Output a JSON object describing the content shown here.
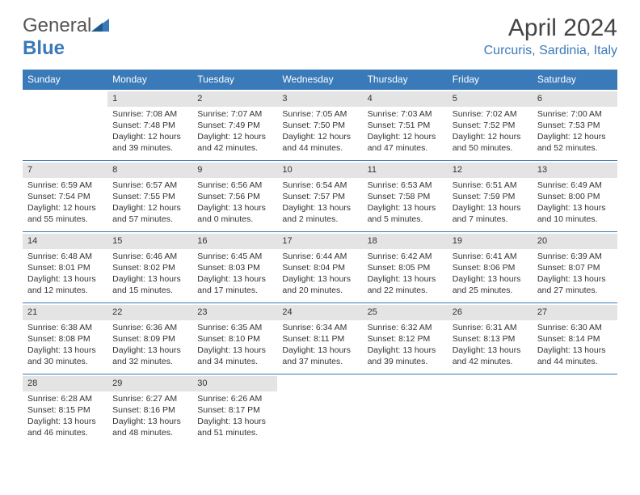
{
  "logo": {
    "text_gray": "General",
    "text_blue": "Blue"
  },
  "title": "April 2024",
  "location": "Curcuris, Sardinia, Italy",
  "colors": {
    "brand_blue": "#3a7ab8",
    "header_bg": "#3a7ab8",
    "daynum_bg": "#e4e4e4",
    "text": "#333333",
    "title_color": "#444444"
  },
  "typography": {
    "title_fontsize": 30,
    "location_fontsize": 16,
    "th_fontsize": 12,
    "cell_fontsize": 10.5
  },
  "day_headers": [
    "Sunday",
    "Monday",
    "Tuesday",
    "Wednesday",
    "Thursday",
    "Friday",
    "Saturday"
  ],
  "weeks": [
    [
      {
        "day": "",
        "empty": true
      },
      {
        "day": "1",
        "sunrise": "Sunrise: 7:08 AM",
        "sunset": "Sunset: 7:48 PM",
        "daylight": "Daylight: 12 hours and 39 minutes."
      },
      {
        "day": "2",
        "sunrise": "Sunrise: 7:07 AM",
        "sunset": "Sunset: 7:49 PM",
        "daylight": "Daylight: 12 hours and 42 minutes."
      },
      {
        "day": "3",
        "sunrise": "Sunrise: 7:05 AM",
        "sunset": "Sunset: 7:50 PM",
        "daylight": "Daylight: 12 hours and 44 minutes."
      },
      {
        "day": "4",
        "sunrise": "Sunrise: 7:03 AM",
        "sunset": "Sunset: 7:51 PM",
        "daylight": "Daylight: 12 hours and 47 minutes."
      },
      {
        "day": "5",
        "sunrise": "Sunrise: 7:02 AM",
        "sunset": "Sunset: 7:52 PM",
        "daylight": "Daylight: 12 hours and 50 minutes."
      },
      {
        "day": "6",
        "sunrise": "Sunrise: 7:00 AM",
        "sunset": "Sunset: 7:53 PM",
        "daylight": "Daylight: 12 hours and 52 minutes."
      }
    ],
    [
      {
        "day": "7",
        "sunrise": "Sunrise: 6:59 AM",
        "sunset": "Sunset: 7:54 PM",
        "daylight": "Daylight: 12 hours and 55 minutes."
      },
      {
        "day": "8",
        "sunrise": "Sunrise: 6:57 AM",
        "sunset": "Sunset: 7:55 PM",
        "daylight": "Daylight: 12 hours and 57 minutes."
      },
      {
        "day": "9",
        "sunrise": "Sunrise: 6:56 AM",
        "sunset": "Sunset: 7:56 PM",
        "daylight": "Daylight: 13 hours and 0 minutes."
      },
      {
        "day": "10",
        "sunrise": "Sunrise: 6:54 AM",
        "sunset": "Sunset: 7:57 PM",
        "daylight": "Daylight: 13 hours and 2 minutes."
      },
      {
        "day": "11",
        "sunrise": "Sunrise: 6:53 AM",
        "sunset": "Sunset: 7:58 PM",
        "daylight": "Daylight: 13 hours and 5 minutes."
      },
      {
        "day": "12",
        "sunrise": "Sunrise: 6:51 AM",
        "sunset": "Sunset: 7:59 PM",
        "daylight": "Daylight: 13 hours and 7 minutes."
      },
      {
        "day": "13",
        "sunrise": "Sunrise: 6:49 AM",
        "sunset": "Sunset: 8:00 PM",
        "daylight": "Daylight: 13 hours and 10 minutes."
      }
    ],
    [
      {
        "day": "14",
        "sunrise": "Sunrise: 6:48 AM",
        "sunset": "Sunset: 8:01 PM",
        "daylight": "Daylight: 13 hours and 12 minutes."
      },
      {
        "day": "15",
        "sunrise": "Sunrise: 6:46 AM",
        "sunset": "Sunset: 8:02 PM",
        "daylight": "Daylight: 13 hours and 15 minutes."
      },
      {
        "day": "16",
        "sunrise": "Sunrise: 6:45 AM",
        "sunset": "Sunset: 8:03 PM",
        "daylight": "Daylight: 13 hours and 17 minutes."
      },
      {
        "day": "17",
        "sunrise": "Sunrise: 6:44 AM",
        "sunset": "Sunset: 8:04 PM",
        "daylight": "Daylight: 13 hours and 20 minutes."
      },
      {
        "day": "18",
        "sunrise": "Sunrise: 6:42 AM",
        "sunset": "Sunset: 8:05 PM",
        "daylight": "Daylight: 13 hours and 22 minutes."
      },
      {
        "day": "19",
        "sunrise": "Sunrise: 6:41 AM",
        "sunset": "Sunset: 8:06 PM",
        "daylight": "Daylight: 13 hours and 25 minutes."
      },
      {
        "day": "20",
        "sunrise": "Sunrise: 6:39 AM",
        "sunset": "Sunset: 8:07 PM",
        "daylight": "Daylight: 13 hours and 27 minutes."
      }
    ],
    [
      {
        "day": "21",
        "sunrise": "Sunrise: 6:38 AM",
        "sunset": "Sunset: 8:08 PM",
        "daylight": "Daylight: 13 hours and 30 minutes."
      },
      {
        "day": "22",
        "sunrise": "Sunrise: 6:36 AM",
        "sunset": "Sunset: 8:09 PM",
        "daylight": "Daylight: 13 hours and 32 minutes."
      },
      {
        "day": "23",
        "sunrise": "Sunrise: 6:35 AM",
        "sunset": "Sunset: 8:10 PM",
        "daylight": "Daylight: 13 hours and 34 minutes."
      },
      {
        "day": "24",
        "sunrise": "Sunrise: 6:34 AM",
        "sunset": "Sunset: 8:11 PM",
        "daylight": "Daylight: 13 hours and 37 minutes."
      },
      {
        "day": "25",
        "sunrise": "Sunrise: 6:32 AM",
        "sunset": "Sunset: 8:12 PM",
        "daylight": "Daylight: 13 hours and 39 minutes."
      },
      {
        "day": "26",
        "sunrise": "Sunrise: 6:31 AM",
        "sunset": "Sunset: 8:13 PM",
        "daylight": "Daylight: 13 hours and 42 minutes."
      },
      {
        "day": "27",
        "sunrise": "Sunrise: 6:30 AM",
        "sunset": "Sunset: 8:14 PM",
        "daylight": "Daylight: 13 hours and 44 minutes."
      }
    ],
    [
      {
        "day": "28",
        "sunrise": "Sunrise: 6:28 AM",
        "sunset": "Sunset: 8:15 PM",
        "daylight": "Daylight: 13 hours and 46 minutes."
      },
      {
        "day": "29",
        "sunrise": "Sunrise: 6:27 AM",
        "sunset": "Sunset: 8:16 PM",
        "daylight": "Daylight: 13 hours and 48 minutes."
      },
      {
        "day": "30",
        "sunrise": "Sunrise: 6:26 AM",
        "sunset": "Sunset: 8:17 PM",
        "daylight": "Daylight: 13 hours and 51 minutes."
      },
      {
        "day": "",
        "empty": true
      },
      {
        "day": "",
        "empty": true
      },
      {
        "day": "",
        "empty": true
      },
      {
        "day": "",
        "empty": true
      }
    ]
  ]
}
